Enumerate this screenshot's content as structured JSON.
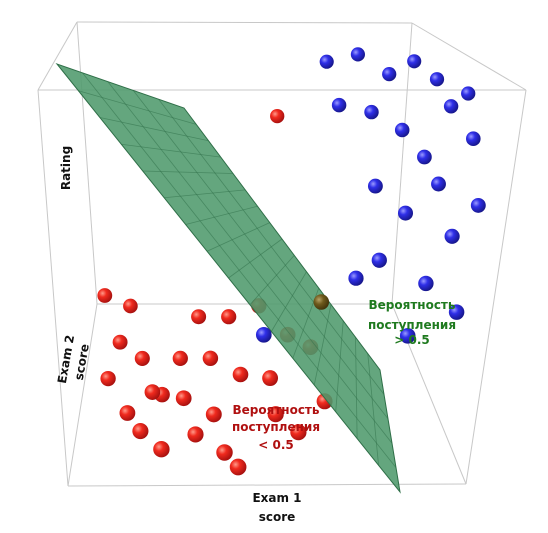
{
  "chart_data": {
    "type": "scatter",
    "variant": "3d-scatter-with-decision-plane",
    "axes": {
      "x_label": "Exam 1 score",
      "y_label": "Exam 2 score",
      "z_label": "Rating"
    },
    "series": [
      {
        "color": "#e02020",
        "points": [
          {
            "x": 8,
            "y": 70,
            "z": 6
          },
          {
            "x": 14,
            "y": 64,
            "z": 4
          },
          {
            "x": 10,
            "y": 78,
            "z": 14
          },
          {
            "x": 6,
            "y": 56,
            "z": 2
          },
          {
            "x": 4,
            "y": 72,
            "z": 22
          },
          {
            "x": 20,
            "y": 50,
            "z": 0
          },
          {
            "x": 24,
            "y": 58,
            "z": 8
          },
          {
            "x": 18,
            "y": 44,
            "z": 5
          },
          {
            "x": 28,
            "y": 66,
            "z": 18
          },
          {
            "x": 32,
            "y": 52,
            "z": 12
          },
          {
            "x": 12,
            "y": 40,
            "z": 0
          },
          {
            "x": 36,
            "y": 60,
            "z": 22
          },
          {
            "x": 26,
            "y": 42,
            "z": 4
          },
          {
            "x": 40,
            "y": 46,
            "z": 10
          },
          {
            "x": 34,
            "y": 36,
            "z": 2
          },
          {
            "x": 16,
            "y": 30,
            "z": 0
          },
          {
            "x": 44,
            "y": 54,
            "z": 30
          },
          {
            "x": 30,
            "y": 28,
            "z": 0
          },
          {
            "x": 48,
            "y": 38,
            "z": 14
          },
          {
            "x": 22,
            "y": 20,
            "z": 0
          },
          {
            "x": 52,
            "y": 44,
            "z": 26
          },
          {
            "x": 50,
            "y": 30,
            "z": 6
          },
          {
            "x": 58,
            "y": 40,
            "z": 24
          },
          {
            "x": 38,
            "y": 18,
            "z": 0
          },
          {
            "x": 56,
            "y": 26,
            "z": 2
          },
          {
            "x": 62,
            "y": 34,
            "z": 8
          },
          {
            "x": 42,
            "y": 10,
            "z": 0
          },
          {
            "x": 46,
            "y": 90,
            "z": 76
          }
        ]
      },
      {
        "color": "#2424d8",
        "points": [
          {
            "x": 58,
            "y": 96,
            "z": 92
          },
          {
            "x": 66,
            "y": 94,
            "z": 96
          },
          {
            "x": 74,
            "y": 92,
            "z": 90
          },
          {
            "x": 62,
            "y": 84,
            "z": 84
          },
          {
            "x": 70,
            "y": 86,
            "z": 80
          },
          {
            "x": 80,
            "y": 96,
            "z": 92
          },
          {
            "x": 86,
            "y": 92,
            "z": 88
          },
          {
            "x": 78,
            "y": 82,
            "z": 76
          },
          {
            "x": 90,
            "y": 86,
            "z": 82
          },
          {
            "x": 84,
            "y": 76,
            "z": 70
          },
          {
            "x": 94,
            "y": 90,
            "z": 84
          },
          {
            "x": 72,
            "y": 72,
            "z": 62
          },
          {
            "x": 88,
            "y": 70,
            "z": 64
          },
          {
            "x": 96,
            "y": 80,
            "z": 74
          },
          {
            "x": 80,
            "y": 66,
            "z": 56
          },
          {
            "x": 92,
            "y": 62,
            "z": 50
          },
          {
            "x": 98,
            "y": 70,
            "z": 56
          },
          {
            "x": 74,
            "y": 58,
            "z": 44
          },
          {
            "x": 86,
            "y": 54,
            "z": 38
          },
          {
            "x": 94,
            "y": 50,
            "z": 30
          },
          {
            "x": 68,
            "y": 60,
            "z": 36
          },
          {
            "x": 82,
            "y": 46,
            "z": 24
          },
          {
            "x": 46,
            "y": 44,
            "z": 26
          }
        ]
      },
      {
        "color": "#6b5a1a",
        "points": [
          {
            "x": 60,
            "y": 50,
            "z": 34
          }
        ]
      }
    ],
    "decision_plane": {
      "color": "#4f9a6c",
      "grid_color": "#2f6f48"
    },
    "annotations": [
      {
        "text_line1": "Вероятность",
        "text_line2": "поступления",
        "text_line3": "> 0.5",
        "color": "#1f7a1f"
      },
      {
        "text_line1": "Вероятность",
        "text_line2": "поступления",
        "text_line3": "< 0.5",
        "color": "#b01010"
      }
    ],
    "grid": false,
    "legend": "none"
  }
}
